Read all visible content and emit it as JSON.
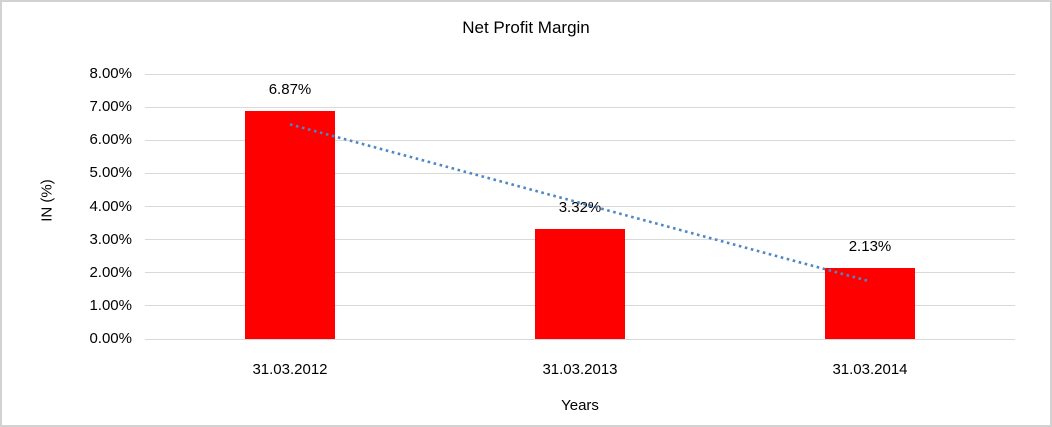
{
  "chart_data": {
    "type": "bar",
    "title": "Net Profit Margin",
    "categories": [
      "31.03.2012",
      "31.03.2013",
      "31.03.2014"
    ],
    "values": [
      6.87,
      3.32,
      2.13
    ],
    "data_labels": [
      "6.87%",
      "3.32%",
      "2.13%"
    ],
    "xlabel": "Years",
    "ylabel": "IN (%)",
    "ylim": [
      0,
      8
    ],
    "ytick_step": 1,
    "ytick_labels": [
      "0.00%",
      "1.00%",
      "2.00%",
      "3.00%",
      "4.00%",
      "5.00%",
      "6.00%",
      "7.00%",
      "8.00%"
    ],
    "grid": true,
    "legend": "none",
    "bar_color": "#ff0000",
    "gridline_color": "#d9d9d9",
    "frame_border_color": "#d2d2d2",
    "trendline": {
      "type": "linear",
      "style": "dotted",
      "color": "#4e86c6",
      "start_value": 6.48,
      "end_value": 1.74
    }
  }
}
